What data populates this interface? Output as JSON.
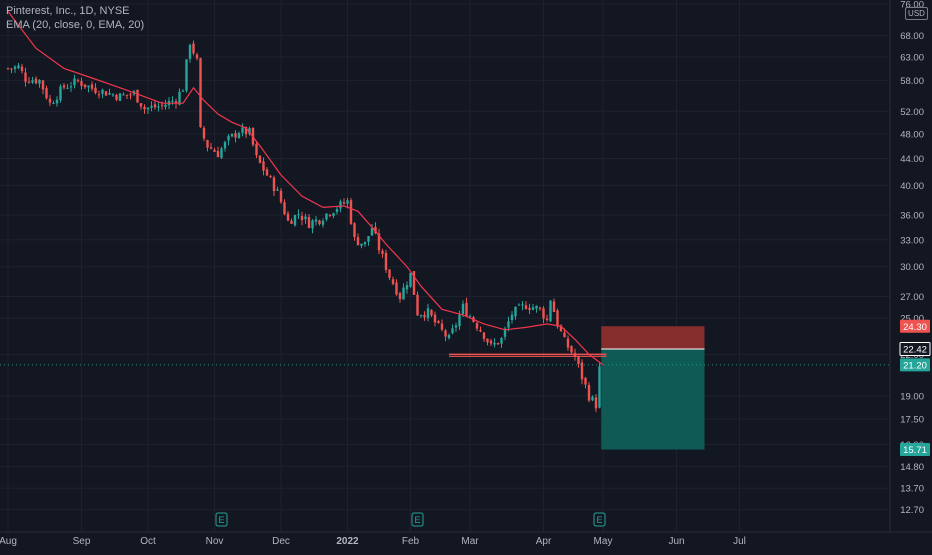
{
  "legend": {
    "symbol_line": "Pinterest, Inc., 1D, NYSE",
    "indicator_line": "EMA (20, close, 0, EMA, 20)"
  },
  "currency": "USD",
  "colors": {
    "background": "#131722",
    "grid": "#1e2230",
    "up": "#26a69a",
    "down": "#ef5350",
    "ema": "#f2364d",
    "stop_zone": "#8c2f2e",
    "target_zone": "#0f5e59",
    "text": "#b2b5be"
  },
  "chart_data": {
    "type": "candlestick",
    "title": "Pinterest, Inc., 1D, NYSE",
    "y_scale": "log",
    "ylim": [
      12.2,
      76
    ],
    "y_ticks": [
      "76.00",
      "68.00",
      "63.00",
      "58.00",
      "52.00",
      "48.00",
      "44.00",
      "40.00",
      "36.00",
      "33.00",
      "30.00",
      "27.00",
      "25.00",
      "22.00",
      "19.00",
      "17.50",
      "16.00",
      "14.80",
      "13.70",
      "12.70"
    ],
    "x_ticks": [
      {
        "label": "Aug",
        "idx": 0
      },
      {
        "label": "Sep",
        "idx": 21
      },
      {
        "label": "Oct",
        "idx": 40
      },
      {
        "label": "Nov",
        "idx": 59
      },
      {
        "label": "Dec",
        "idx": 78
      },
      {
        "label": "2022",
        "idx": 97
      },
      {
        "label": "Feb",
        "idx": 115
      },
      {
        "label": "Mar",
        "idx": 132
      },
      {
        "label": "Apr",
        "idx": 153
      },
      {
        "label": "May",
        "idx": 170
      },
      {
        "label": "Jun",
        "idx": 191
      },
      {
        "label": "Jul",
        "idx": 209
      }
    ],
    "earnings_markers": [
      {
        "label": "E",
        "idx": 61
      },
      {
        "label": "E",
        "idx": 117
      },
      {
        "label": "E",
        "idx": 169
      }
    ],
    "close_path": [
      [
        0,
        60.5
      ],
      [
        3,
        60.8
      ],
      [
        5,
        58.4
      ],
      [
        9,
        58.0
      ],
      [
        12,
        53.4
      ],
      [
        16,
        56.7
      ],
      [
        20,
        57.8
      ],
      [
        24,
        56.4
      ],
      [
        28,
        55.6
      ],
      [
        32,
        54.8
      ],
      [
        36,
        55.4
      ],
      [
        39,
        52.5
      ],
      [
        44,
        53.0
      ],
      [
        48,
        54.3
      ],
      [
        50,
        56.5
      ],
      [
        52,
        66.5
      ],
      [
        54,
        62.0
      ],
      [
        55,
        48.5
      ],
      [
        57,
        46.0
      ],
      [
        60,
        44.8
      ],
      [
        63,
        47.0
      ],
      [
        66,
        48.5
      ],
      [
        69,
        48.2
      ],
      [
        71,
        44.0
      ],
      [
        74,
        41.5
      ],
      [
        77,
        39.0
      ],
      [
        80,
        35.2
      ],
      [
        83,
        36.2
      ],
      [
        86,
        35.0
      ],
      [
        89,
        35.5
      ],
      [
        92,
        36.5
      ],
      [
        95,
        37.3
      ],
      [
        97,
        37.8
      ],
      [
        99,
        33.0
      ],
      [
        102,
        32.5
      ],
      [
        104,
        34.5
      ],
      [
        106,
        32.0
      ],
      [
        109,
        29.0
      ],
      [
        112,
        27.0
      ],
      [
        115,
        29.2
      ],
      [
        117,
        25.5
      ],
      [
        120,
        25.5
      ],
      [
        123,
        24.2
      ],
      [
        126,
        23.2
      ],
      [
        128,
        24.5
      ],
      [
        130,
        26.0
      ],
      [
        133,
        24.8
      ],
      [
        136,
        23.6
      ],
      [
        138,
        22.6
      ],
      [
        141,
        23.2
      ],
      [
        144,
        25.4
      ],
      [
        148,
        26.2
      ],
      [
        152,
        25.8
      ],
      [
        154,
        24.8
      ],
      [
        155,
        26.8
      ],
      [
        157,
        24.5
      ],
      [
        159,
        23.0
      ],
      [
        162,
        21.8
      ],
      [
        164,
        20.3
      ],
      [
        166,
        19.0
      ],
      [
        168,
        18.4
      ],
      [
        169,
        20.9
      ]
    ],
    "ema_period": 20,
    "ema_path": [
      [
        0,
        74.0
      ],
      [
        8,
        65.0
      ],
      [
        16,
        60.5
      ],
      [
        24,
        58.5
      ],
      [
        30,
        57.0
      ],
      [
        36,
        55.5
      ],
      [
        44,
        53.5
      ],
      [
        50,
        53.5
      ],
      [
        53,
        56.5
      ],
      [
        56,
        54.0
      ],
      [
        60,
        51.5
      ],
      [
        64,
        50.0
      ],
      [
        68,
        49.0
      ],
      [
        72,
        46.0
      ],
      [
        78,
        41.5
      ],
      [
        84,
        38.5
      ],
      [
        90,
        37.0
      ],
      [
        96,
        37.2
      ],
      [
        100,
        36.5
      ],
      [
        104,
        34.5
      ],
      [
        108,
        32.5
      ],
      [
        114,
        30.0
      ],
      [
        118,
        28.0
      ],
      [
        124,
        25.8
      ],
      [
        130,
        25.3
      ],
      [
        136,
        24.5
      ],
      [
        142,
        24.0
      ],
      [
        148,
        24.2
      ],
      [
        154,
        24.5
      ],
      [
        158,
        24.3
      ],
      [
        162,
        23.2
      ],
      [
        166,
        22.0
      ],
      [
        170,
        21.2
      ]
    ],
    "horizontal_line": {
      "y": 22.0,
      "from_idx": 126,
      "to_idx": 171
    },
    "position": {
      "from_idx": 169.5,
      "to_idx": 199,
      "entry": 22.42,
      "stop": 24.3,
      "target": 15.71
    },
    "price_labels": [
      {
        "value": 24.3,
        "text": "24.30",
        "kind": "stop"
      },
      {
        "value": 22.42,
        "text": "22.42",
        "kind": "entry"
      },
      {
        "value": 21.2,
        "text": "21.20",
        "kind": "last"
      },
      {
        "value": 15.71,
        "text": "15.71",
        "kind": "target"
      }
    ]
  }
}
